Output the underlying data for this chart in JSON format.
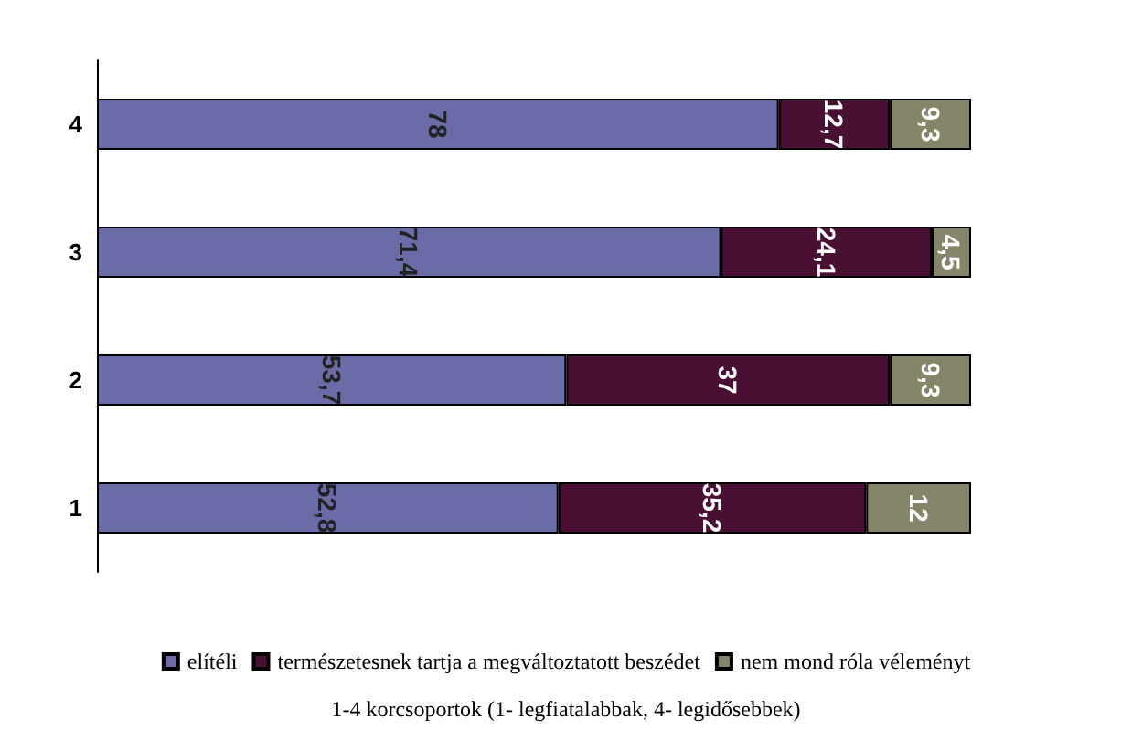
{
  "chart_data": {
    "type": "bar",
    "orientation": "horizontal",
    "stacked": true,
    "annotations": [
      "1-4 korcsoportok (1- legfiatalabbak, 4- legidősebbek)"
    ],
    "categories": [
      "4",
      "3",
      "2",
      "1"
    ],
    "series": [
      {
        "name": "elítéli",
        "color": "#6b6ba8",
        "values": [
          78,
          71.4,
          53.7,
          52.8
        ],
        "value_labels": [
          "78",
          "71,4",
          "53,7",
          "52,8"
        ]
      },
      {
        "name": "természetesnek tartja a megváltoztatott beszédet",
        "color": "#4a1033",
        "values": [
          12.7,
          24.1,
          37,
          35.2
        ],
        "value_labels": [
          "12,7",
          "24,1",
          "37",
          "35,2"
        ]
      },
      {
        "name": "nem mond róla véleményt",
        "color": "#85856a",
        "values": [
          9.3,
          4.5,
          9.3,
          12
        ],
        "value_labels": [
          "9,3",
          "4,5",
          "9,3",
          "12"
        ]
      }
    ],
    "legend": "bottom"
  }
}
